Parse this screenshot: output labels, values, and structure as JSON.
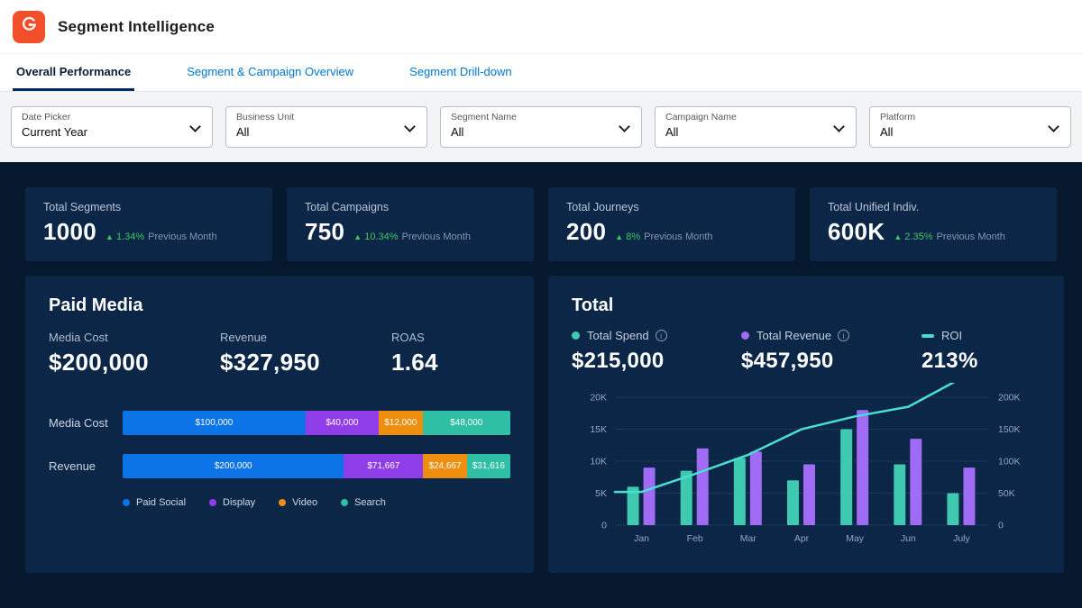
{
  "header": {
    "title": "Segment Intelligence"
  },
  "tabs": [
    {
      "label": "Overall Performance",
      "active": true
    },
    {
      "label": "Segment & Campaign Overview",
      "active": false
    },
    {
      "label": "Segment Drill-down",
      "active": false
    }
  ],
  "filters": [
    {
      "label": "Date Picker",
      "value": "Current Year"
    },
    {
      "label": "Business Unit",
      "value": "All"
    },
    {
      "label": "Segment Name",
      "value": "All"
    },
    {
      "label": "Campaign Name",
      "value": "All"
    },
    {
      "label": "Platform",
      "value": "All"
    }
  ],
  "kpis": [
    {
      "label": "Total Segments",
      "value": "1000",
      "delta": "1.34%",
      "suffix": "Previous Month"
    },
    {
      "label": "Total Campaigns",
      "value": "750",
      "delta": "10.34%",
      "suffix": "Previous Month"
    },
    {
      "label": "Total Journeys",
      "value": "200",
      "delta": "8%",
      "suffix": "Previous Month"
    },
    {
      "label": "Total Unified Indiv.",
      "value": "600K",
      "delta": "2.35%",
      "suffix": "Previous Month"
    }
  ],
  "paid_media": {
    "title": "Paid Media",
    "metrics": [
      {
        "label": "Media Cost",
        "value": "$200,000"
      },
      {
        "label": "Revenue",
        "value": "$327,950"
      },
      {
        "label": "ROAS",
        "value": "1.64"
      }
    ]
  },
  "total": {
    "title": "Total",
    "stats": [
      {
        "legend": "Total Spend",
        "value": "$215,000",
        "color": "#3ec9b0",
        "marker": "dot",
        "info": true
      },
      {
        "legend": "Total Revenue",
        "value": "$457,950",
        "color": "#a06bf5",
        "marker": "dot",
        "info": true
      },
      {
        "legend": "ROI",
        "value": "213%",
        "color": "#49ded0",
        "marker": "dash",
        "info": false
      }
    ]
  },
  "colors": {
    "brand_orange": "#f24e29",
    "link_blue": "#0176d3",
    "active_tab_underline": "#032d60",
    "page_bg": "#06182e",
    "panel_bg": "#0c2647",
    "delta_green": "#41c464"
  },
  "chart_data": [
    {
      "type": "bar",
      "subtype": "horizontal-stacked",
      "title": "Paid Media",
      "categories": [
        "Media Cost",
        "Revenue"
      ],
      "series": [
        {
          "name": "Paid Social",
          "color": "#0d74e7",
          "values": [
            100000,
            200000
          ],
          "labels": [
            "$100,000",
            "$200,000"
          ]
        },
        {
          "name": "Display",
          "color": "#8f3de8",
          "values": [
            40000,
            71667
          ],
          "labels": [
            "$40,000",
            "$71,667"
          ]
        },
        {
          "name": "Video",
          "color": "#ef8e0e",
          "values": [
            12000,
            24667
          ],
          "labels": [
            "$12,000",
            "$24,667"
          ]
        },
        {
          "name": "Search",
          "color": "#2fbfa4",
          "values": [
            48000,
            31616
          ],
          "labels": [
            "$48,000",
            "$31,616"
          ]
        }
      ]
    },
    {
      "type": "bar",
      "subtype": "grouped-bars-with-line",
      "title": "Total",
      "categories": [
        "Jan",
        "Feb",
        "Mar",
        "Apr",
        "May",
        "Jun",
        "July"
      ],
      "series": [
        {
          "name": "Total Spend",
          "color": "#3ec9b0",
          "axis": "left",
          "values": [
            6000,
            8500,
            10500,
            7000,
            15000,
            9500,
            5000
          ]
        },
        {
          "name": "Total Revenue",
          "color": "#a06bf5",
          "axis": "left",
          "values": [
            9000,
            12000,
            11500,
            9500,
            18000,
            13500,
            9000
          ]
        }
      ],
      "line": {
        "name": "ROI",
        "color": "#49ded0",
        "axis": "right",
        "values": [
          52000,
          80000,
          110000,
          150000,
          170000,
          185000,
          230000
        ]
      },
      "left_axis": {
        "max": 20000,
        "ticks": [
          0,
          5000,
          10000,
          15000,
          20000
        ],
        "tick_labels": [
          "0",
          "5K",
          "10K",
          "15K",
          "20K"
        ]
      },
      "right_axis": {
        "max": 200000,
        "ticks": [
          0,
          50000,
          100000,
          150000,
          200000
        ],
        "tick_labels": [
          "0",
          "50K",
          "100K",
          "150K",
          "200K"
        ]
      },
      "legend_position": "top",
      "grid": true
    }
  ]
}
